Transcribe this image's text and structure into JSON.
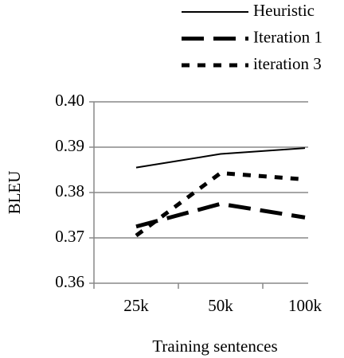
{
  "chart_data": {
    "type": "line",
    "categories": [
      "25k",
      "50k",
      "100k"
    ],
    "x_label": "Training sentences",
    "y_label": "BLEU",
    "ylim": [
      0.36,
      0.4
    ],
    "yticks": [
      0.36,
      0.37,
      0.38,
      0.39,
      {
        "value": 0.4,
        "label": "0.40"
      }
    ],
    "grid": true,
    "legend": "top-right",
    "series": [
      {
        "name": "Heuristic",
        "color": "#000000",
        "line_style": "solid",
        "values": [
          0.3855,
          0.3885,
          0.3898
        ]
      },
      {
        "name": "Iteration 1",
        "color": "#000000",
        "line_style": "dashed",
        "values": [
          0.3725,
          0.3775,
          0.3745
        ]
      },
      {
        "name": "iteration 3",
        "color": "#000000",
        "line_style": "dotted",
        "values": [
          0.3705,
          0.3843,
          0.3829
        ]
      }
    ]
  }
}
